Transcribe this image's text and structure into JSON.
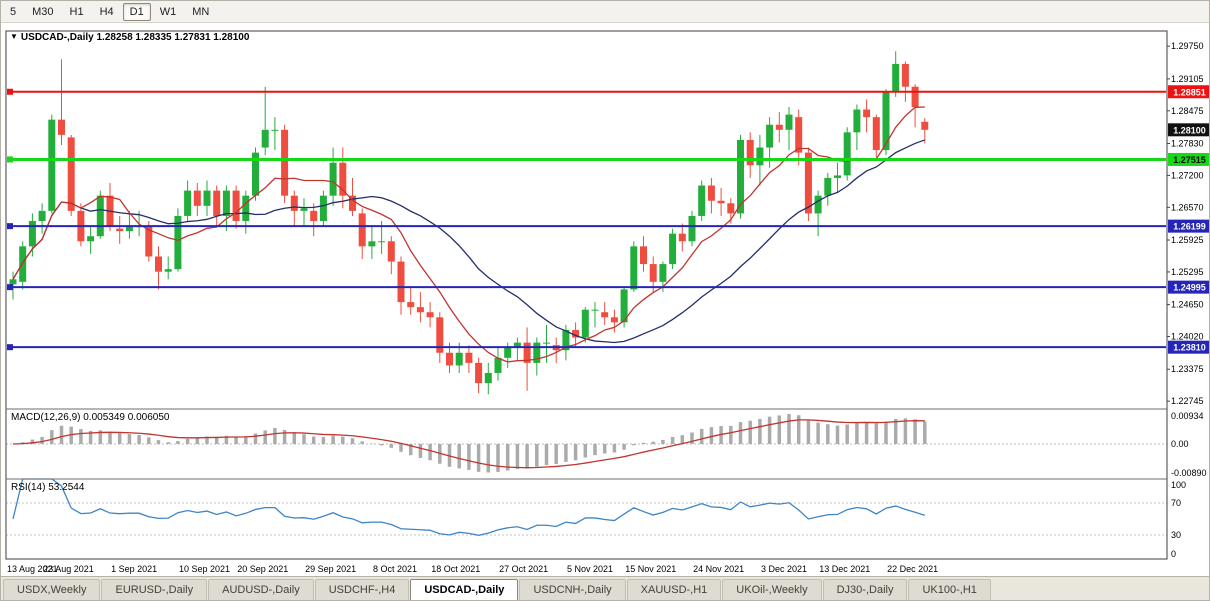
{
  "toolbar": {
    "timeframes": [
      {
        "label": "5",
        "active": false
      },
      {
        "label": "M30",
        "active": false
      },
      {
        "label": "H1",
        "active": false
      },
      {
        "label": "H4",
        "active": false
      },
      {
        "label": "D1",
        "active": true
      },
      {
        "label": "W1",
        "active": false
      },
      {
        "label": "MN",
        "active": false
      }
    ]
  },
  "chart_header": {
    "collapse_icon": "▼",
    "title": "USDCAD-,Daily",
    "ohlc": "1.28258 1.28335 1.27831 1.28100"
  },
  "price_axis": {
    "ticks": [
      "1.29750",
      "1.29105",
      "1.28475",
      "1.27830",
      "1.27200",
      "1.26570",
      "1.25925",
      "1.25295",
      "1.24650",
      "1.24020",
      "1.23375",
      "1.22745"
    ]
  },
  "price_markers": [
    {
      "label": "1.28851",
      "value": 1.28851,
      "bg": "#ee1111",
      "fg": "#ffffff",
      "line": "#ee1111",
      "line_width": 2
    },
    {
      "label": "1.28100",
      "value": 1.281,
      "bg": "#111111",
      "fg": "#ffffff",
      "line": null,
      "line_width": 0
    },
    {
      "label": "1.27515",
      "value": 1.27515,
      "bg": "#17d817",
      "fg": "#000000",
      "line": "#17d817",
      "line_width": 3
    },
    {
      "label": "1.26199",
      "value": 1.26199,
      "bg": "#2525b8",
      "fg": "#ffffff",
      "line": "#2525b8",
      "line_width": 2
    },
    {
      "label": "1.24995",
      "value": 1.24995,
      "bg": "#2525b8",
      "fg": "#ffffff",
      "line": "#2525b8",
      "line_width": 2
    },
    {
      "label": "1.23810",
      "value": 1.2381,
      "bg": "#2525b8",
      "fg": "#ffffff",
      "line": "#2525b8",
      "line_width": 2
    }
  ],
  "macd_panel": {
    "label": "MACD(12,26,9) 0.005349 0.006050",
    "axis": [
      "0.00934",
      "0.00",
      "-0.00890"
    ]
  },
  "rsi_panel": {
    "label": "RSI(14) 53.2544",
    "axis": [
      "100",
      "70",
      "30",
      "0"
    ],
    "levels": [
      70,
      30
    ]
  },
  "tabs": [
    {
      "label": "USDX,Weekly",
      "active": false
    },
    {
      "label": "EURUSD-,Daily",
      "active": false
    },
    {
      "label": "AUDUSD-,Daily",
      "active": false
    },
    {
      "label": "USDCHF-,H4",
      "active": false
    },
    {
      "label": "USDCAD-,Daily",
      "active": true
    },
    {
      "label": "USDCNH-,Daily",
      "active": false
    },
    {
      "label": "XAUUSD-,H1",
      "active": false
    },
    {
      "label": "UKOil-,Weekly",
      "active": false
    },
    {
      "label": "DJ30-,Daily",
      "active": false
    },
    {
      "label": "UK100-,H1",
      "active": false
    }
  ],
  "chart_data": {
    "type": "candlestick",
    "symbol": "USDCAD",
    "timeframe": "Daily",
    "current_ohlc": {
      "open": 1.28258,
      "high": 1.28335,
      "low": 1.27831,
      "close": 1.281
    },
    "price_min": 1.2259,
    "price_max": 1.3005,
    "bar_spacing": 9.7,
    "ma_fast_period": 8,
    "ma_slow_period": 21,
    "colors": {
      "up": "#23ae3b",
      "down": "#ee4d40",
      "ma_fast": "#c2342e",
      "ma_slow": "#232f6b",
      "macd_bar": "#ababab",
      "macd_signal": "#c2342e",
      "rsi_line": "#3d85c8"
    },
    "indicators": {
      "macd": {
        "fast": 12,
        "slow": 26,
        "signal": 9,
        "value": "0.005349",
        "signal_value": "0.006050"
      },
      "rsi": {
        "period": 14,
        "value": "53.2544"
      }
    },
    "date_ticks": [
      {
        "label": "13 Aug 2021",
        "index": 0
      },
      {
        "label": "23 Aug 2021",
        "index": 6
      },
      {
        "label": "1 Sep 2021",
        "index": 13
      },
      {
        "label": "10 Sep 2021",
        "index": 20
      },
      {
        "label": "20 Sep 2021",
        "index": 26
      },
      {
        "label": "29 Sep 2021",
        "index": 33
      },
      {
        "label": "8 Oct 2021",
        "index": 40
      },
      {
        "label": "18 Oct 2021",
        "index": 46
      },
      {
        "label": "27 Oct 2021",
        "index": 53
      },
      {
        "label": "5 Nov 2021",
        "index": 60
      },
      {
        "label": "15 Nov 2021",
        "index": 66
      },
      {
        "label": "24 Nov 2021",
        "index": 73
      },
      {
        "label": "3 Dec 2021",
        "index": 80
      },
      {
        "label": "13 Dec 2021",
        "index": 86
      },
      {
        "label": "22 Dec 2021",
        "index": 93
      }
    ],
    "candles": [
      [
        1.2505,
        1.253,
        1.2475,
        1.2515
      ],
      [
        1.251,
        1.259,
        1.2495,
        1.258
      ],
      [
        1.258,
        1.2645,
        1.256,
        1.263
      ],
      [
        1.263,
        1.2665,
        1.2605,
        1.265
      ],
      [
        1.265,
        1.284,
        1.2645,
        1.283
      ],
      [
        1.283,
        1.2949,
        1.278,
        1.28
      ],
      [
        1.2795,
        1.28,
        1.264,
        1.265
      ],
      [
        1.265,
        1.2665,
        1.258,
        1.259
      ],
      [
        1.259,
        1.262,
        1.2565,
        1.26
      ],
      [
        1.26,
        1.269,
        1.2595,
        1.268
      ],
      [
        1.268,
        1.2705,
        1.261,
        1.262
      ],
      [
        1.2615,
        1.264,
        1.2585,
        1.261
      ],
      [
        1.261,
        1.265,
        1.2595,
        1.262
      ],
      [
        1.262,
        1.265,
        1.26,
        1.262
      ],
      [
        1.262,
        1.263,
        1.255,
        1.256
      ],
      [
        1.256,
        1.258,
        1.2495,
        1.253
      ],
      [
        1.253,
        1.256,
        1.2515,
        1.2535
      ],
      [
        1.2535,
        1.2655,
        1.253,
        1.264
      ],
      [
        1.264,
        1.271,
        1.263,
        1.269
      ],
      [
        1.269,
        1.2705,
        1.264,
        1.266
      ],
      [
        1.266,
        1.271,
        1.264,
        1.269
      ],
      [
        1.269,
        1.27,
        1.262,
        1.264
      ],
      [
        1.264,
        1.27,
        1.261,
        1.269
      ],
      [
        1.269,
        1.27,
        1.2615,
        1.263
      ],
      [
        1.263,
        1.269,
        1.2605,
        1.268
      ],
      [
        1.268,
        1.2775,
        1.267,
        1.2765
      ],
      [
        1.2775,
        1.2895,
        1.276,
        1.281
      ],
      [
        1.281,
        1.2835,
        1.277,
        1.281
      ],
      [
        1.281,
        1.282,
        1.2665,
        1.268
      ],
      [
        1.268,
        1.269,
        1.262,
        1.265
      ],
      [
        1.265,
        1.2675,
        1.262,
        1.2655
      ],
      [
        1.265,
        1.2665,
        1.26,
        1.263
      ],
      [
        1.263,
        1.269,
        1.262,
        1.268
      ],
      [
        1.268,
        1.2775,
        1.266,
        1.2745
      ],
      [
        1.2745,
        1.2775,
        1.2655,
        1.268
      ],
      [
        1.268,
        1.2715,
        1.264,
        1.265
      ],
      [
        1.2645,
        1.2655,
        1.2555,
        1.258
      ],
      [
        1.258,
        1.262,
        1.2555,
        1.259
      ],
      [
        1.259,
        1.263,
        1.2565,
        1.259
      ],
      [
        1.259,
        1.26,
        1.2525,
        1.255
      ],
      [
        1.255,
        1.256,
        1.2445,
        1.247
      ],
      [
        1.247,
        1.25,
        1.2445,
        1.246
      ],
      [
        1.246,
        1.249,
        1.243,
        1.245
      ],
      [
        1.245,
        1.247,
        1.242,
        1.244
      ],
      [
        1.244,
        1.245,
        1.235,
        1.237
      ],
      [
        1.237,
        1.239,
        1.233,
        1.2345
      ],
      [
        1.2345,
        1.239,
        1.233,
        1.237
      ],
      [
        1.237,
        1.2385,
        1.233,
        1.235
      ],
      [
        1.235,
        1.236,
        1.229,
        1.231
      ],
      [
        1.231,
        1.235,
        1.2288,
        1.233
      ],
      [
        1.233,
        1.238,
        1.2315,
        1.236
      ],
      [
        1.236,
        1.239,
        1.234,
        1.238
      ],
      [
        1.238,
        1.24,
        1.2355,
        1.239
      ],
      [
        1.239,
        1.242,
        1.2295,
        1.235
      ],
      [
        1.235,
        1.24,
        1.2325,
        1.239
      ],
      [
        1.239,
        1.2425,
        1.235,
        1.239
      ],
      [
        1.2385,
        1.24,
        1.235,
        1.2375
      ],
      [
        1.2375,
        1.2425,
        1.2355,
        1.2415
      ],
      [
        1.2415,
        1.243,
        1.238,
        1.24
      ],
      [
        1.24,
        1.246,
        1.239,
        1.2455
      ],
      [
        1.2455,
        1.247,
        1.242,
        1.2455
      ],
      [
        1.245,
        1.247,
        1.2425,
        1.244
      ],
      [
        1.244,
        1.2455,
        1.241,
        1.243
      ],
      [
        1.243,
        1.25,
        1.242,
        1.2495
      ],
      [
        1.2495,
        1.259,
        1.249,
        1.258
      ],
      [
        1.258,
        1.26,
        1.253,
        1.2545
      ],
      [
        1.2545,
        1.256,
        1.249,
        1.251
      ],
      [
        1.251,
        1.255,
        1.249,
        1.2545
      ],
      [
        1.2545,
        1.2615,
        1.2535,
        1.2605
      ],
      [
        1.2605,
        1.2625,
        1.257,
        1.259
      ],
      [
        1.259,
        1.265,
        1.258,
        1.264
      ],
      [
        1.264,
        1.271,
        1.263,
        1.27
      ],
      [
        1.27,
        1.2715,
        1.2645,
        1.267
      ],
      [
        1.267,
        1.2695,
        1.264,
        1.2665
      ],
      [
        1.2665,
        1.2675,
        1.2625,
        1.2645
      ],
      [
        1.2645,
        1.28,
        1.2635,
        1.279
      ],
      [
        1.279,
        1.2805,
        1.2715,
        1.274
      ],
      [
        1.274,
        1.28,
        1.27,
        1.2775
      ],
      [
        1.2775,
        1.2835,
        1.2735,
        1.282
      ],
      [
        1.282,
        1.2845,
        1.2785,
        1.281
      ],
      [
        1.281,
        1.2855,
        1.277,
        1.284
      ],
      [
        1.2835,
        1.285,
        1.274,
        1.2765
      ],
      [
        1.2765,
        1.2775,
        1.263,
        1.2645
      ],
      [
        1.2645,
        1.269,
        1.26,
        1.268
      ],
      [
        1.268,
        1.2725,
        1.266,
        1.2715
      ],
      [
        1.2715,
        1.2745,
        1.2685,
        1.272
      ],
      [
        1.272,
        1.2815,
        1.271,
        1.2805
      ],
      [
        1.2805,
        1.286,
        1.277,
        1.285
      ],
      [
        1.285,
        1.287,
        1.2805,
        1.2835
      ],
      [
        1.2835,
        1.284,
        1.2755,
        1.277
      ],
      [
        1.277,
        1.289,
        1.276,
        1.2885
      ],
      [
        1.2885,
        1.2965,
        1.2875,
        1.294
      ],
      [
        1.294,
        1.2945,
        1.2865,
        1.2895
      ],
      [
        1.2895,
        1.29,
        1.2815,
        1.2855
      ],
      [
        1.28258,
        1.28335,
        1.27831,
        1.281
      ]
    ]
  }
}
